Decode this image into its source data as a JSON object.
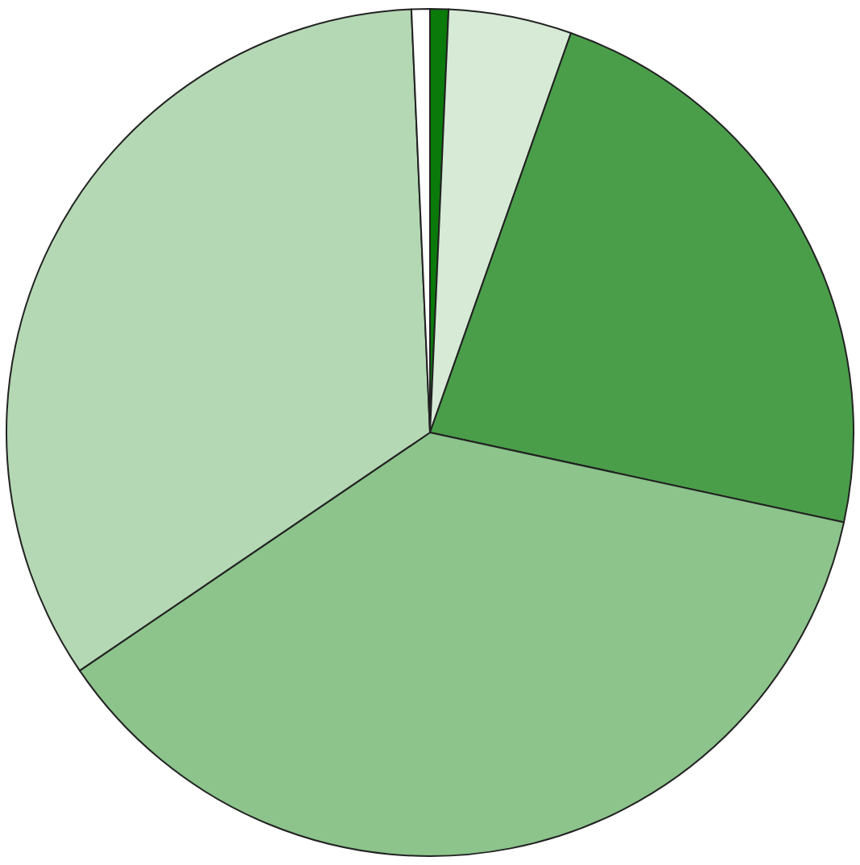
{
  "chart_data": {
    "type": "pie",
    "categories": [
      null,
      null,
      null,
      null,
      null,
      null
    ],
    "values": [
      0.7,
      4.7,
      23,
      37.1,
      33.8,
      0.7
    ],
    "colors": [
      "#0a7a0a",
      "#d6ead6",
      "#4a9e4a",
      "#8cc48c",
      "#b4d8b4",
      "#ffffff"
    ],
    "legend": false
  }
}
